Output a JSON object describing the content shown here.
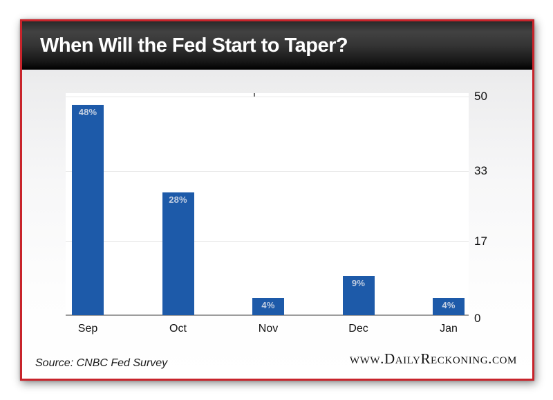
{
  "header": {
    "title": "When Will the Fed Start to Taper?"
  },
  "chart_data": {
    "type": "bar",
    "title": "When Will the Fed Start to Taper?",
    "categories": [
      "Sep",
      "Oct",
      "Nov",
      "Dec",
      "Jan"
    ],
    "values": [
      48,
      28,
      4,
      9,
      4
    ],
    "value_labels": [
      "48%",
      "28%",
      "4%",
      "9%",
      "4%"
    ],
    "xlabel": "",
    "ylabel": "",
    "ylim": [
      0,
      50
    ],
    "yticks": [
      50,
      33,
      17,
      0
    ],
    "grid": true,
    "legend": "none",
    "bar_color": "#1d5aa9",
    "bar_label_color": "#c3cfe2"
  },
  "footer": {
    "source": "Source: CNBC Fed Survey",
    "website": "www.DailyReckoning.com"
  },
  "colors": {
    "frame_red": "#c8242b",
    "header_text": "#ffffff",
    "axis_text": "#111111",
    "gridline": "#e7e7e7",
    "baseline": "#9d9d9d",
    "plot_background": "#ffffff"
  }
}
